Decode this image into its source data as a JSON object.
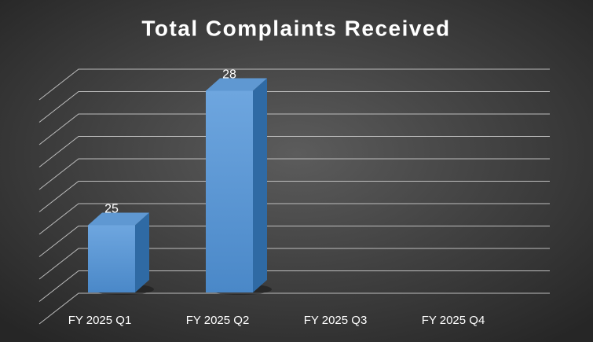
{
  "chart_data": {
    "type": "bar",
    "title": "Total Complaints Received",
    "categories": [
      "FY 2025 Q1",
      "FY 2025 Q2",
      "FY 2025 Q3",
      "FY 2025 Q4"
    ],
    "values": [
      25,
      28,
      null,
      null
    ],
    "color": "#5b9bd5",
    "ylim": [
      23.5,
      28.5
    ],
    "yticks": [
      23.5,
      24,
      24.5,
      25,
      25.5,
      26,
      26.5,
      27,
      27.5,
      28,
      28.5
    ],
    "grid": true
  }
}
